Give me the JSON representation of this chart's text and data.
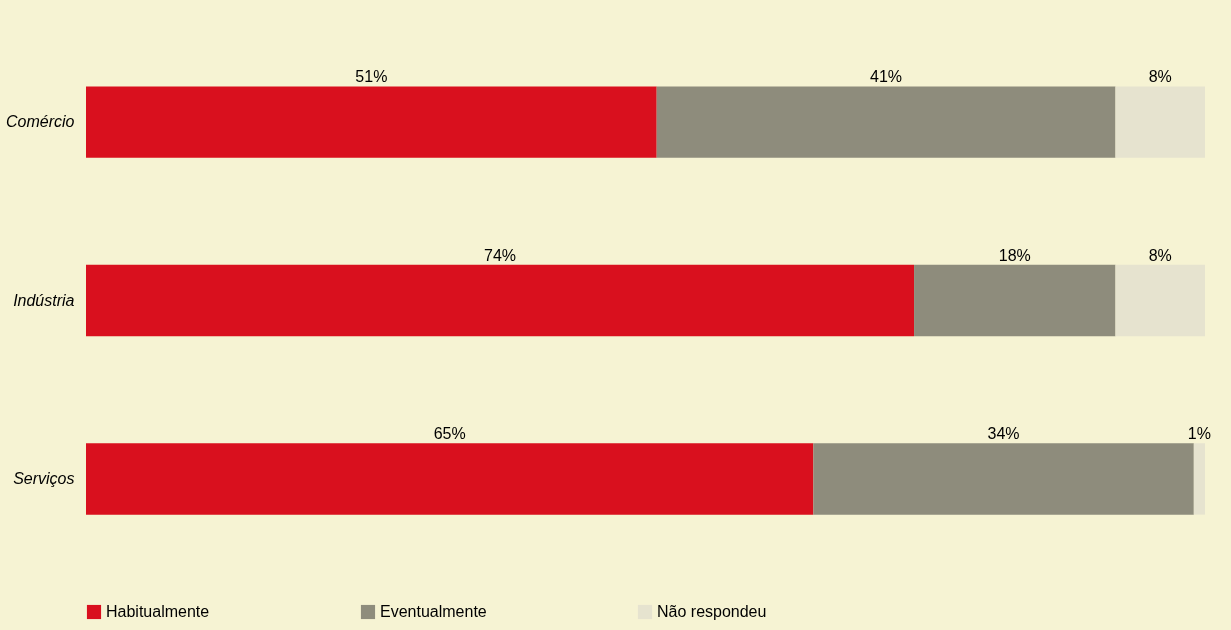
{
  "chart_data": {
    "type": "bar",
    "orientation": "horizontal",
    "stacked": true,
    "categories": [
      "Comércio",
      "Indústria",
      "Serviços"
    ],
    "series": [
      {
        "name": "Habitualmente",
        "color": "#d9101e",
        "values": [
          51,
          74,
          65
        ],
        "value_labels": [
          "51%",
          "74%",
          "65%"
        ]
      },
      {
        "name": "Eventualmente",
        "color": "#8e8c7c",
        "values": [
          41,
          18,
          34
        ],
        "value_labels": [
          "41%",
          "18%",
          "34%"
        ]
      },
      {
        "name": "Não respondeu",
        "color": "#e6e3cf",
        "values": [
          8,
          8,
          1
        ],
        "value_labels": [
          "8%",
          "8%",
          "1%"
        ]
      }
    ],
    "legend": "bottom",
    "tick_labels": "y",
    "grid": false
  }
}
